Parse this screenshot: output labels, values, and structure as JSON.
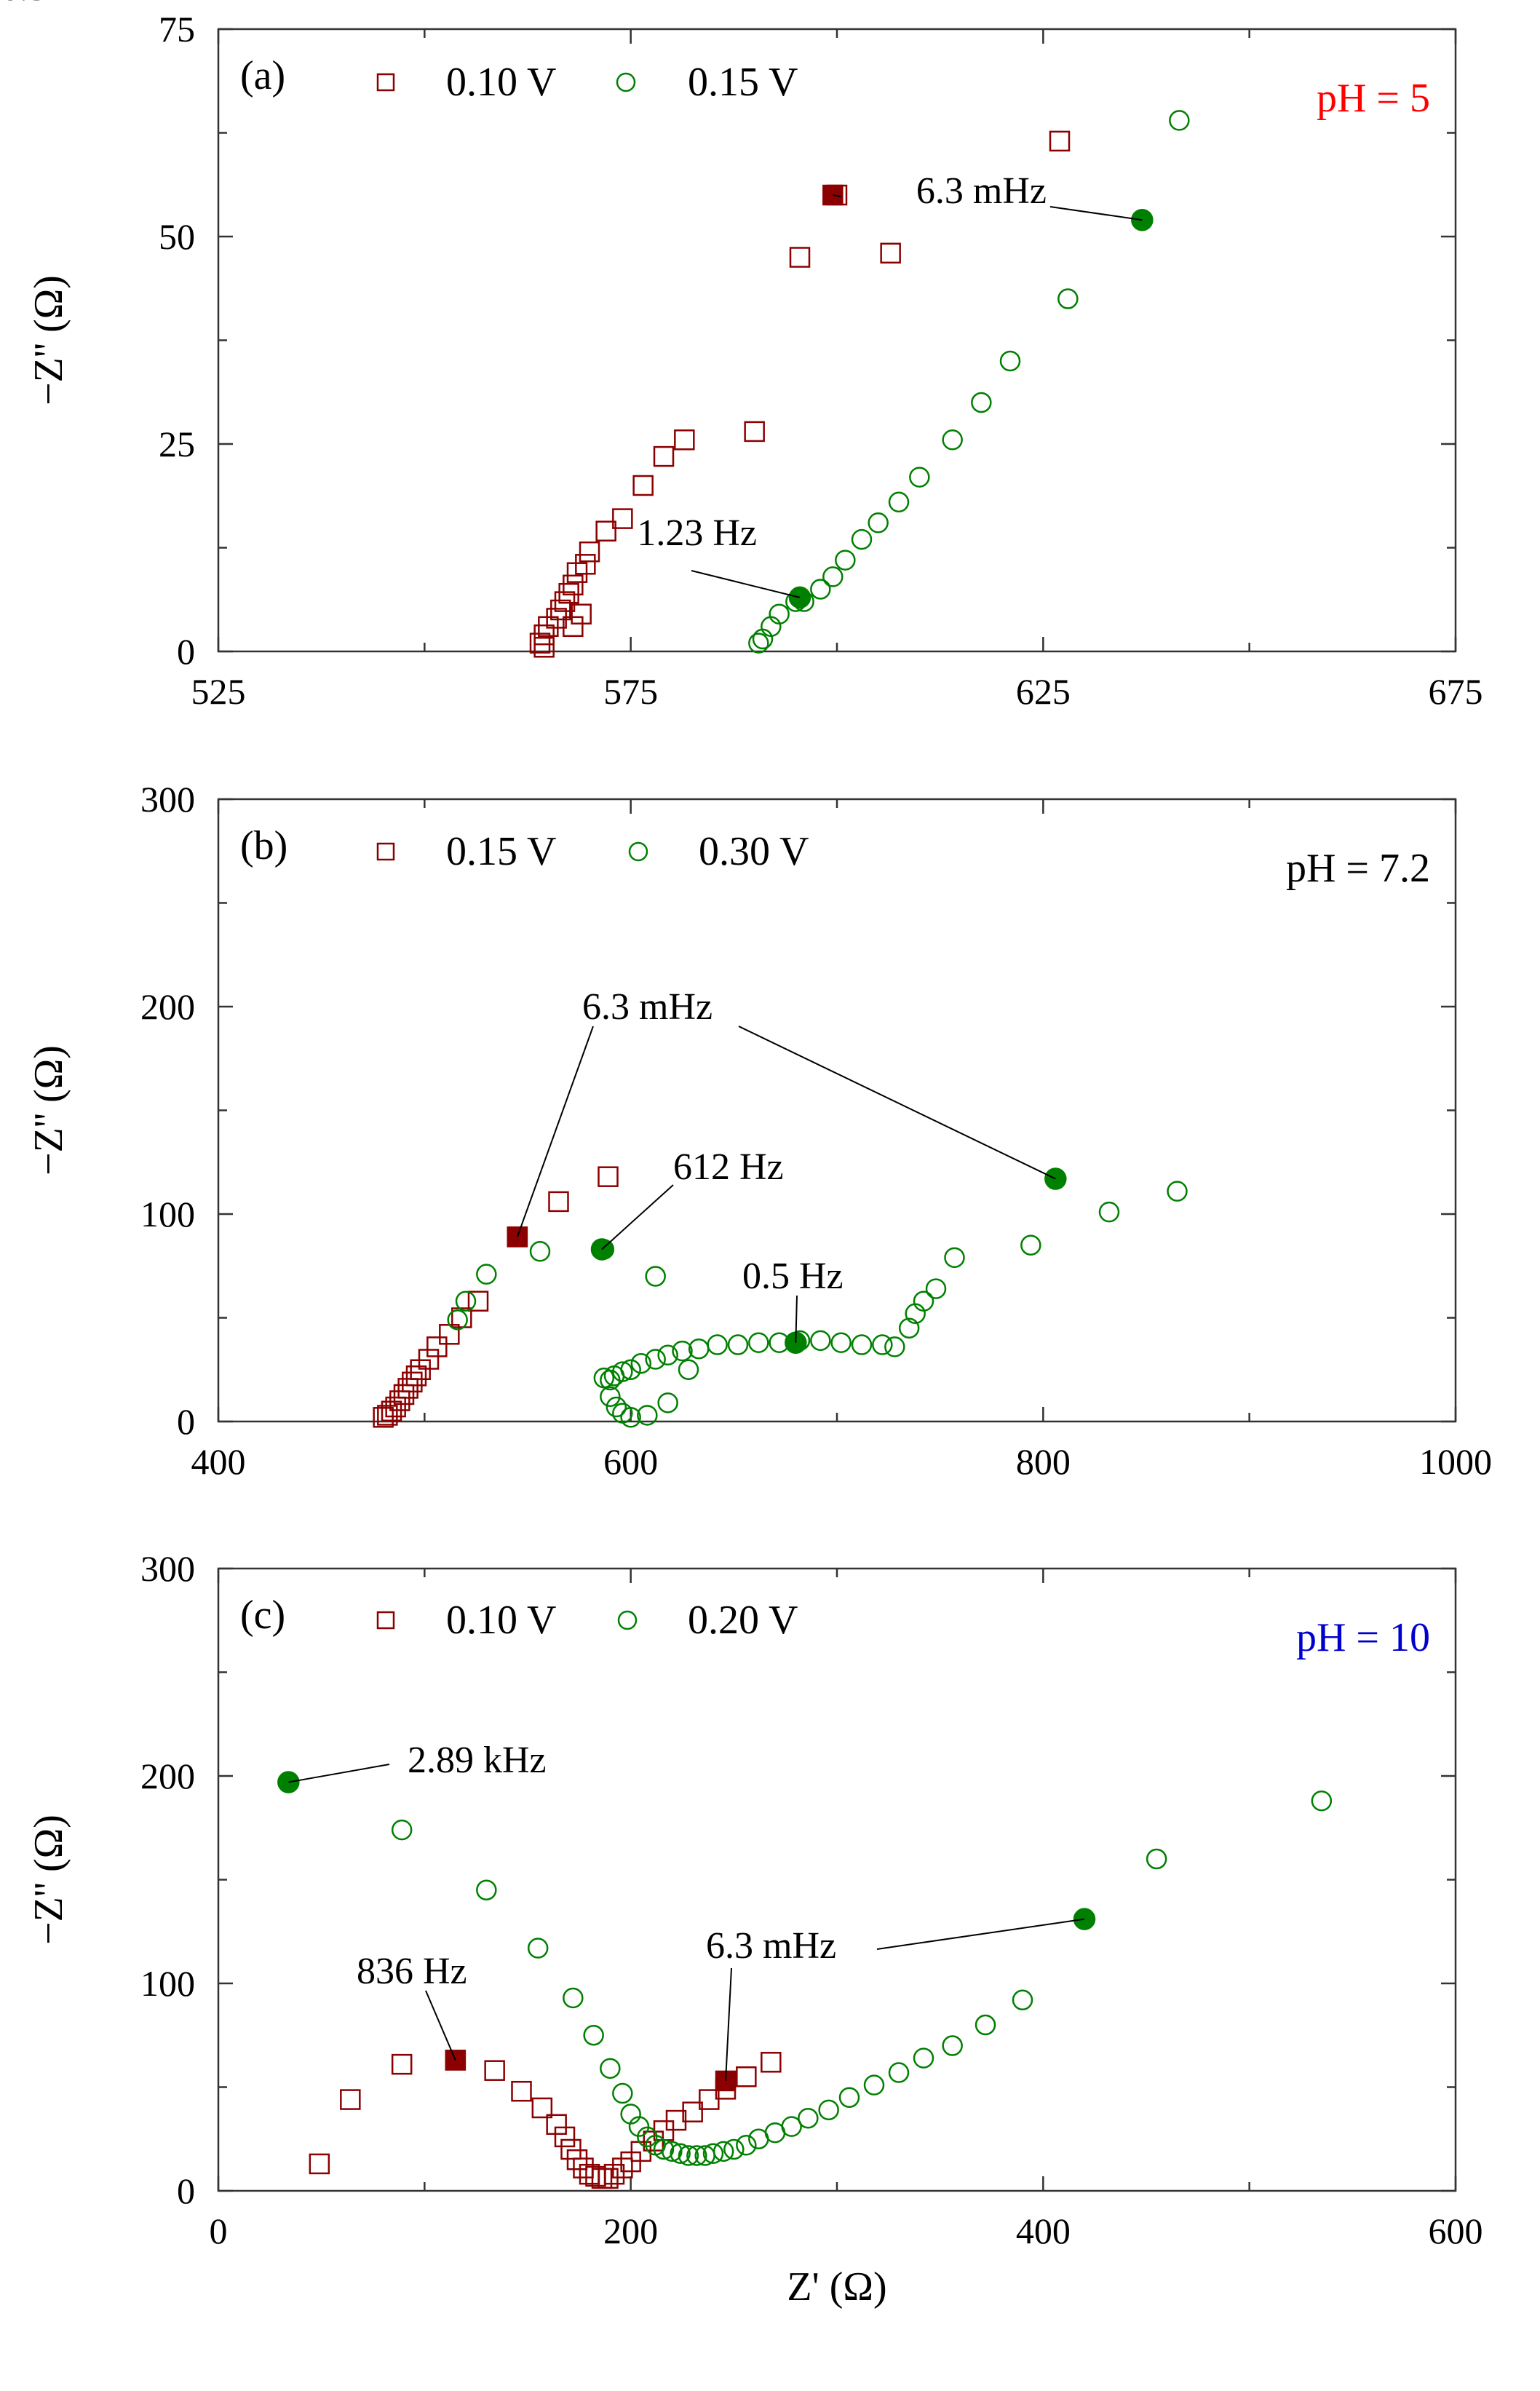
{
  "chart_data": [
    {
      "type": "scatter",
      "panel_label": "(a)",
      "ph_text": "pH = 5",
      "ph_color": "#ff0000",
      "xlabel": "",
      "ylabel": "−Z'' (Ω)",
      "xlim": [
        525,
        675
      ],
      "ylim": [
        0,
        75
      ],
      "xticks": [
        525,
        575,
        625,
        675
      ],
      "yticks": [
        0,
        25,
        50,
        75
      ],
      "xtick_labels": [
        "525",
        "575",
        "625",
        "675"
      ],
      "ytick_labels": [
        "0",
        "25",
        "50",
        "75"
      ],
      "series": [
        {
          "name": "0.10 V",
          "marker": "square",
          "color": "#8b0000",
          "x": [
            564.5,
            564,
            564.5,
            565,
            566,
            566.5,
            567,
            567.5,
            568,
            568.5,
            568,
            569,
            569.5,
            570,
            572,
            574,
            576.5,
            579,
            581.5,
            590,
            595.5,
            600,
            606.5,
            627
          ],
          "y": [
            0.5,
            1.0,
            2.0,
            3.0,
            4.0,
            5.0,
            6.0,
            7.0,
            8.0,
            9.5,
            3.0,
            4.5,
            10.5,
            12.0,
            14.5,
            16.0,
            20.0,
            23.5,
            25.5,
            26.5,
            47.5,
            55.0,
            48.0,
            61.5
          ]
        },
        {
          "name": "0.15 V",
          "marker": "circle",
          "color": "#008000",
          "x": [
            590.5,
            591,
            592,
            593,
            595,
            596,
            598,
            599.5,
            601,
            603,
            605,
            607.5,
            610,
            614,
            617.5,
            621,
            628,
            637,
            641.5
          ],
          "y": [
            1.0,
            1.5,
            3.0,
            4.5,
            6.0,
            6.0,
            7.5,
            9.0,
            11.0,
            13.5,
            15.5,
            18.0,
            21.0,
            25.5,
            30.0,
            35.0,
            42.5,
            52.0,
            64.0
          ]
        }
      ],
      "highlighted_points": [
        {
          "series": "0.10 V",
          "x": 599.5,
          "y": 55.0,
          "label": "6.3 mHz"
        },
        {
          "series": "0.15 V",
          "x": 637,
          "y": 52.0,
          "label": ""
        },
        {
          "series": "0.15 V",
          "x": 595.5,
          "y": 6.5,
          "label": "1.23 Hz"
        }
      ]
    },
    {
      "type": "scatter",
      "panel_label": "(b)",
      "ph_text": "pH = 7.2",
      "ph_color": "#000000",
      "xlabel": "",
      "ylabel": "−Z'' (Ω)",
      "xlim": [
        400,
        1000
      ],
      "ylim": [
        0,
        300
      ],
      "xticks": [
        400,
        600,
        800,
        1000
      ],
      "yticks": [
        0,
        100,
        200,
        300
      ],
      "xtick_labels": [
        "400",
        "600",
        "800",
        "1000"
      ],
      "ytick_labels": [
        "0",
        "100",
        "200",
        "300"
      ],
      "series": [
        {
          "name": "0.15 V",
          "marker": "square",
          "color": "#8b0000",
          "x": [
            480,
            482,
            484,
            486,
            488,
            490,
            492,
            494,
            496,
            498,
            502,
            506,
            512,
            518,
            526,
            545,
            565,
            589
          ],
          "y": [
            2,
            3,
            5,
            7,
            10,
            13,
            16,
            19,
            22,
            25,
            30,
            36,
            42,
            50,
            58,
            89,
            106,
            118
          ],
          "marker_indices_filled": [
            15
          ]
        },
        {
          "name": "0.30 V",
          "marker": "circle",
          "color": "#008000",
          "x": [
            587,
            590,
            592,
            596,
            600,
            605,
            612,
            618,
            625,
            633,
            642,
            652,
            662,
            672,
            682,
            692,
            702,
            712,
            722,
            728,
            735,
            738,
            742,
            748,
            757,
            590,
            593,
            596,
            600,
            608,
            618,
            628,
            612,
            587,
            556,
            530,
            520,
            516,
            794,
            832,
            865
          ],
          "y": [
            21,
            20,
            22,
            24,
            25,
            28,
            30,
            32,
            34,
            35,
            37,
            37,
            38,
            38,
            39,
            39,
            38,
            37,
            37,
            36,
            45,
            52,
            58,
            64,
            79,
            12,
            7,
            4,
            2,
            3,
            9,
            25,
            70,
            83,
            82,
            71,
            58,
            49,
            85,
            101,
            111
          ]
        }
      ],
      "highlighted_points": [
        {
          "series": "0.15 V",
          "x": 545,
          "y": 89,
          "label": "6.3 mHz"
        },
        {
          "series": "0.30 V",
          "x": 806,
          "y": 117,
          "label": "6.3 mHz"
        },
        {
          "series": "0.30 V",
          "x": 586,
          "y": 83,
          "label": "612 Hz"
        },
        {
          "series": "0.30 V",
          "x": 680,
          "y": 38,
          "label": "0.5 Hz"
        }
      ]
    },
    {
      "type": "scatter",
      "panel_label": "(c)",
      "ph_text": "pH = 10",
      "ph_color": "#0000cc",
      "xlabel": "Z' (Ω)",
      "ylabel": "−Z'' (Ω)",
      "xlim": [
        0,
        600
      ],
      "ylim": [
        0,
        300
      ],
      "xticks": [
        0,
        200,
        400,
        600
      ],
      "yticks": [
        0,
        100,
        200,
        300
      ],
      "xtick_labels": [
        "0",
        "200",
        "400",
        "600"
      ],
      "ytick_labels": [
        "0",
        "100",
        "200",
        "300"
      ],
      "series": [
        {
          "name": "0.10 V",
          "marker": "square",
          "color": "#8b0000",
          "x": [
            49,
            64,
            89,
            115,
            134,
            147,
            157,
            164,
            168,
            171,
            174,
            177,
            180,
            183,
            186,
            189,
            192,
            196,
            200,
            205,
            211,
            216,
            222,
            230,
            238,
            246,
            256,
            268
          ],
          "y": [
            13,
            44,
            61,
            63,
            58,
            48,
            40,
            32,
            26,
            20,
            15,
            11,
            8,
            7,
            6,
            6,
            8,
            11,
            14,
            19,
            24,
            29,
            34,
            38,
            44,
            49,
            55,
            62
          ],
          "marker_indices_filled": [
            3
          ]
        },
        {
          "name": "0.20 V",
          "marker": "circle",
          "color": "#008000",
          "x": [
            89,
            130,
            155,
            172,
            182,
            190,
            196,
            200,
            204,
            208,
            212,
            216,
            220,
            224,
            228,
            232,
            236,
            240,
            245,
            250,
            256,
            262,
            270,
            278,
            286,
            296,
            306,
            318,
            330,
            342,
            356,
            372,
            390,
            420,
            455,
            535
          ],
          "y": [
            174,
            145,
            117,
            93,
            75,
            59,
            47,
            37,
            31,
            26,
            22,
            20,
            19,
            18,
            17,
            17,
            17,
            18,
            19,
            20,
            22,
            25,
            28,
            31,
            35,
            39,
            45,
            51,
            57,
            64,
            70,
            80,
            92,
            131,
            160,
            188
          ]
        }
      ],
      "highlighted_points": [
        {
          "series": "0.20 V",
          "x": 34,
          "y": 197,
          "label": "2.89 kHz"
        },
        {
          "series": "0.10 V",
          "x": 115,
          "y": 63,
          "label": "836 Hz"
        },
        {
          "series": "0.10 V",
          "x": 246,
          "y": 53,
          "label": "6.3 mHz"
        },
        {
          "series": "0.20 V",
          "x": 420,
          "y": 131,
          "label": ""
        }
      ]
    }
  ]
}
